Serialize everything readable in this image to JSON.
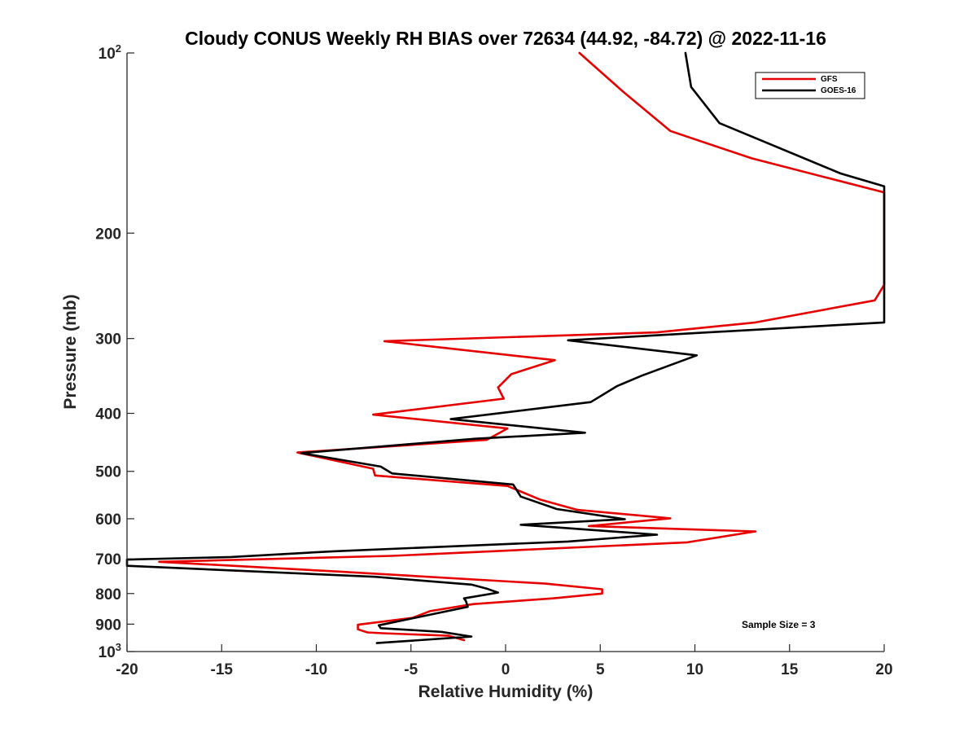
{
  "chart_data": {
    "type": "line",
    "title": "Cloudy CONUS Weekly RH BIAS over 72634 (44.92, -84.72) @ 2022-11-16",
    "xlabel": "Relative Humidity (%)",
    "ylabel": "Pressure (mb)",
    "xlim": [
      -20,
      20
    ],
    "ylim": [
      100,
      1000
    ],
    "y_scale": "log",
    "y_reversed": true,
    "xticks": [
      -20,
      -15,
      -10,
      -5,
      0,
      5,
      10,
      15,
      20
    ],
    "yticks": [
      {
        "value": 100,
        "base": "10",
        "exp": "2"
      },
      {
        "value": 200,
        "label": "200"
      },
      {
        "value": 300,
        "label": "300"
      },
      {
        "value": 400,
        "label": "400"
      },
      {
        "value": 500,
        "label": "500"
      },
      {
        "value": 600,
        "label": "600"
      },
      {
        "value": 700,
        "label": "700"
      },
      {
        "value": 800,
        "label": "800"
      },
      {
        "value": 900,
        "label": "900"
      },
      {
        "value": 1000,
        "base": "10",
        "exp": "3"
      }
    ],
    "grid": false,
    "legend_position": "top-right",
    "annotation": "Sample Size = 3",
    "series": [
      {
        "name": "GFS",
        "color": "#e60000",
        "points": [
          [
            3.9,
            100
          ],
          [
            6.2,
            116
          ],
          [
            8.7,
            135
          ],
          [
            13,
            150
          ],
          [
            20,
            171
          ],
          [
            20,
            244
          ],
          [
            19.5,
            259
          ],
          [
            13.2,
            282
          ],
          [
            8,
            293
          ],
          [
            -6.4,
            303
          ],
          [
            2.6,
            326
          ],
          [
            0.3,
            344
          ],
          [
            -0.4,
            362
          ],
          [
            -0.1,
            378
          ],
          [
            -7,
            402
          ],
          [
            0.1,
            424
          ],
          [
            -1,
            443
          ],
          [
            -11,
            465
          ],
          [
            -7,
            495
          ],
          [
            -6.9,
            508
          ],
          [
            0.1,
            529
          ],
          [
            1.8,
            557
          ],
          [
            3.8,
            580
          ],
          [
            8.7,
            599
          ],
          [
            4.4,
            617
          ],
          [
            13.2,
            630
          ],
          [
            9.6,
            657
          ],
          [
            -6,
            692
          ],
          [
            -18.3,
            708
          ],
          [
            -8.9,
            735
          ],
          [
            2.1,
            770
          ],
          [
            5.1,
            787
          ],
          [
            5.1,
            800
          ],
          [
            2.5,
            815
          ],
          [
            -1.7,
            833
          ],
          [
            -4,
            856
          ],
          [
            -4.9,
            878
          ],
          [
            -7.8,
            902
          ],
          [
            -7.8,
            918
          ],
          [
            -7.3,
            929
          ],
          [
            -6.5,
            932
          ],
          [
            -3,
            941
          ],
          [
            -2.2,
            957
          ]
        ]
      },
      {
        "name": "GOES-16",
        "color": "#000000",
        "points": [
          [
            9.5,
            100
          ],
          [
            9.8,
            114
          ],
          [
            11.3,
            131
          ],
          [
            17.7,
            159
          ],
          [
            20,
            167
          ],
          [
            20,
            282
          ],
          [
            3.3,
            302
          ],
          [
            10.1,
            320
          ],
          [
            7.2,
            346
          ],
          [
            5.9,
            360
          ],
          [
            4.5,
            383
          ],
          [
            -2.9,
            409
          ],
          [
            4.2,
            431
          ],
          [
            -1.6,
            441
          ],
          [
            -10.8,
            466
          ],
          [
            -6.6,
            491
          ],
          [
            -6,
            504
          ],
          [
            0.4,
            526
          ],
          [
            0.8,
            551
          ],
          [
            2.7,
            578
          ],
          [
            6.3,
            601
          ],
          [
            0.8,
            614
          ],
          [
            8,
            638
          ],
          [
            3.3,
            655
          ],
          [
            -9.1,
            680
          ],
          [
            -14.5,
            695
          ],
          [
            -20,
            702
          ],
          [
            -20,
            719
          ],
          [
            -6.9,
            750
          ],
          [
            -1.8,
            773
          ],
          [
            -1,
            785
          ],
          [
            -0.4,
            797
          ],
          [
            -2.2,
            815
          ],
          [
            -2.1,
            823
          ],
          [
            -2,
            842
          ],
          [
            -6.7,
            904
          ],
          [
            -6.6,
            914
          ],
          [
            -3.4,
            927
          ],
          [
            -1.8,
            944
          ],
          [
            -6.8,
            968
          ]
        ]
      }
    ]
  }
}
